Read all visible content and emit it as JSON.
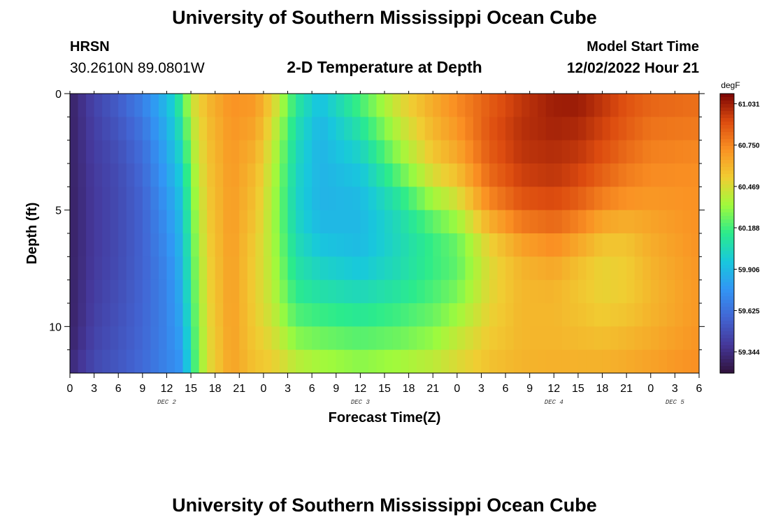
{
  "page": {
    "title_top": "University of Southern Mississippi Ocean Cube",
    "title_bottom": "University of Southern Mississippi Ocean Cube",
    "station": "HRSN",
    "coords": "30.2610N  89.0801W",
    "chart_title": "2-D Temperature at Depth",
    "model_start_label": "Model Start Time",
    "model_start_value": "12/02/2022 Hour 21"
  },
  "chart_data": {
    "type": "heatmap",
    "title": "2-D Temperature at Depth",
    "xlabel": "Forecast Time(Z)",
    "ylabel": "Depth (ft)",
    "colorbar_unit": "degF",
    "colorbar_ticks": [
      61.031,
      60.75,
      60.469,
      60.188,
      59.906,
      59.625,
      59.344
    ],
    "color_range": [
      59.2,
      61.1
    ],
    "x_range": [
      0,
      78
    ],
    "y_range": [
      0,
      12
    ],
    "x_ticks": [
      0,
      3,
      6,
      9,
      12,
      15,
      18,
      21,
      24,
      27,
      30,
      33,
      36,
      39,
      42,
      45,
      48,
      51,
      54,
      57,
      60,
      63,
      66,
      69,
      72,
      75,
      78
    ],
    "x_tick_labels": [
      "0",
      "3",
      "6",
      "9",
      "12",
      "15",
      "18",
      "21",
      "0",
      "3",
      "6",
      "9",
      "12",
      "15",
      "18",
      "21",
      "0",
      "3",
      "6",
      "9",
      "12",
      "15",
      "18",
      "21",
      "0",
      "3",
      "6"
    ],
    "y_ticks": [
      0,
      5,
      10
    ],
    "y_tick_labels": [
      "0",
      "5",
      "10"
    ],
    "date_labels": [
      {
        "label": "DEC 2",
        "hour": 12
      },
      {
        "label": "DEC 3",
        "hour": 36
      },
      {
        "label": "DEC 4",
        "hour": 60
      },
      {
        "label": "DEC 5",
        "hour": 75
      }
    ],
    "depth_levels": [
      0,
      1,
      2,
      3,
      4,
      5,
      6,
      7,
      8,
      9,
      10,
      11,
      12
    ],
    "time_keyframes": [
      {
        "hour": 0,
        "profile": [
          59.28,
          59.28,
          59.28,
          59.28,
          59.28,
          59.28,
          59.28,
          59.28,
          59.28,
          59.28,
          59.28,
          59.3,
          59.33
        ]
      },
      {
        "hour": 3,
        "profile": [
          59.45,
          59.43,
          59.42,
          59.41,
          59.4,
          59.4,
          59.4,
          59.4,
          59.41,
          59.42,
          59.43,
          59.45,
          59.47
        ]
      },
      {
        "hour": 6,
        "profile": [
          59.55,
          59.53,
          59.5,
          59.48,
          59.47,
          59.47,
          59.47,
          59.47,
          59.48,
          59.49,
          59.5,
          59.51,
          59.53
        ]
      },
      {
        "hour": 9,
        "profile": [
          59.7,
          59.66,
          59.62,
          59.6,
          59.58,
          59.57,
          59.57,
          59.57,
          59.57,
          59.58,
          59.58,
          59.59,
          59.6
        ]
      },
      {
        "hour": 12,
        "profile": [
          59.92,
          59.88,
          59.85,
          59.82,
          59.79,
          59.76,
          59.74,
          59.72,
          59.7,
          59.7,
          59.7,
          59.7,
          59.7
        ]
      },
      {
        "hour": 14,
        "profile": [
          60.2,
          60.14,
          60.08,
          60.02,
          59.98,
          59.94,
          59.92,
          59.9,
          59.88,
          59.86,
          59.84,
          59.8,
          59.76
        ]
      },
      {
        "hour": 15,
        "profile": [
          60.45,
          60.4,
          60.36,
          60.32,
          60.28,
          60.25,
          60.22,
          60.2,
          60.18,
          60.16,
          60.14,
          60.12,
          60.1
        ]
      },
      {
        "hour": 17,
        "profile": [
          60.6,
          60.58,
          60.56,
          60.55,
          60.54,
          60.53,
          60.52,
          60.51,
          60.5,
          60.49,
          60.48,
          60.47,
          60.46
        ]
      },
      {
        "hour": 20,
        "profile": [
          60.72,
          60.71,
          60.7,
          60.7,
          60.69,
          60.69,
          60.69,
          60.68,
          60.68,
          60.68,
          60.68,
          60.67,
          60.67
        ]
      },
      {
        "hour": 23,
        "profile": [
          60.7,
          60.68,
          60.64,
          60.6,
          60.58,
          60.56,
          60.54,
          60.52,
          60.52,
          60.52,
          60.53,
          60.55,
          60.57
        ]
      },
      {
        "hour": 25,
        "profile": [
          60.55,
          60.5,
          60.45,
          60.42,
          60.4,
          60.38,
          60.38,
          60.39,
          60.4,
          60.42,
          60.45,
          60.5,
          60.55
        ]
      },
      {
        "hour": 28,
        "profile": [
          60.15,
          60.1,
          60.06,
          60.04,
          60.02,
          60.02,
          60.05,
          60.08,
          60.12,
          60.17,
          60.25,
          60.35,
          60.45
        ]
      },
      {
        "hour": 31,
        "profile": [
          59.95,
          59.9,
          59.88,
          59.88,
          59.88,
          59.88,
          59.92,
          59.98,
          60.05,
          60.12,
          60.22,
          60.3,
          60.4
        ]
      },
      {
        "hour": 36,
        "profile": [
          60.22,
          60.15,
          60.05,
          59.98,
          59.92,
          59.9,
          59.9,
          59.92,
          60.0,
          60.08,
          60.18,
          60.26,
          60.35
        ]
      },
      {
        "hour": 41,
        "profile": [
          60.5,
          60.45,
          60.38,
          60.3,
          60.18,
          60.08,
          60.05,
          60.05,
          60.08,
          60.15,
          60.22,
          60.3,
          60.4
        ]
      },
      {
        "hour": 45,
        "profile": [
          60.65,
          60.62,
          60.58,
          60.52,
          60.42,
          60.28,
          60.18,
          60.16,
          60.18,
          60.22,
          60.28,
          60.36,
          60.45
        ]
      },
      {
        "hour": 48,
        "profile": [
          60.75,
          60.72,
          60.68,
          60.62,
          60.52,
          60.4,
          60.28,
          60.22,
          60.25,
          60.3,
          60.38,
          60.45,
          60.5
        ]
      },
      {
        "hour": 52,
        "profile": [
          60.85,
          60.88,
          60.88,
          60.85,
          60.8,
          60.7,
          60.55,
          60.48,
          60.48,
          60.5,
          60.52,
          60.55,
          60.58
        ]
      },
      {
        "hour": 56,
        "profile": [
          60.95,
          60.98,
          60.98,
          60.96,
          60.92,
          60.85,
          60.72,
          60.62,
          60.6,
          60.6,
          60.6,
          60.6,
          60.62
        ]
      },
      {
        "hour": 60,
        "profile": [
          61.03,
          61.03,
          61.0,
          60.98,
          60.95,
          60.88,
          60.78,
          60.68,
          60.62,
          60.6,
          60.6,
          60.61,
          60.63
        ]
      },
      {
        "hour": 63,
        "profile": [
          61.05,
          61.02,
          60.98,
          60.95,
          60.9,
          60.82,
          60.7,
          60.6,
          60.55,
          60.56,
          60.58,
          60.6,
          60.63
        ]
      },
      {
        "hour": 66,
        "profile": [
          60.98,
          60.95,
          60.92,
          60.88,
          60.82,
          60.72,
          60.6,
          60.52,
          60.5,
          60.52,
          60.55,
          60.6,
          60.63
        ]
      },
      {
        "hour": 69,
        "profile": [
          60.9,
          60.88,
          60.85,
          60.8,
          60.75,
          60.68,
          60.58,
          60.54,
          60.52,
          60.54,
          60.58,
          60.62,
          60.65
        ]
      },
      {
        "hour": 72,
        "profile": [
          60.85,
          60.82,
          60.78,
          60.75,
          60.72,
          60.68,
          60.64,
          60.62,
          60.6,
          60.6,
          60.62,
          60.65,
          60.68
        ]
      },
      {
        "hour": 78,
        "profile": [
          60.82,
          60.8,
          60.76,
          60.73,
          60.72,
          60.72,
          60.72,
          60.71,
          60.7,
          60.7,
          60.7,
          60.72,
          60.73
        ]
      }
    ]
  }
}
